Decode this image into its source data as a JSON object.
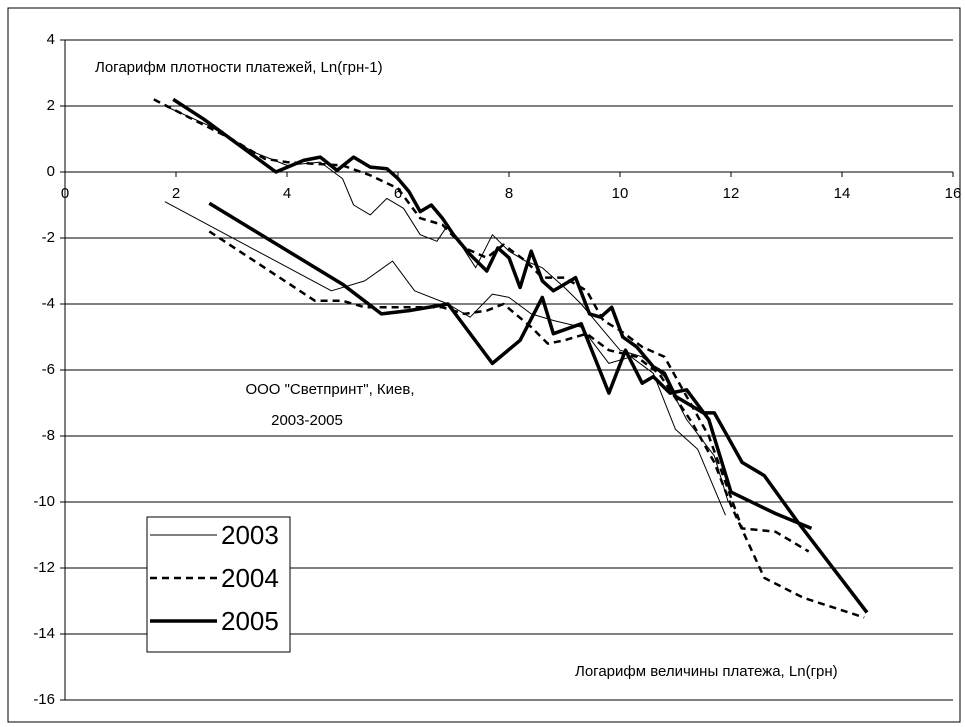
{
  "chart_data": {
    "type": "line",
    "y_label": "Логарифм плотности платежей, Ln(грн-1)",
    "x_label": "Логарифм величины платежа, Ln(грн)",
    "annotations": [
      "ООО \"Светпринт\", Киев,",
      "2003-2005"
    ],
    "xlim": [
      0,
      16
    ],
    "xticks": [
      0,
      2,
      4,
      6,
      8,
      10,
      12,
      14,
      16
    ],
    "ylim": [
      -16,
      4
    ],
    "yticks": [
      -16,
      -14,
      -12,
      -10,
      -8,
      -6,
      -4,
      -2,
      0,
      2,
      4
    ],
    "grid": true,
    "legend": "lower left",
    "series": [
      {
        "name": "2003",
        "color": "#000000",
        "line_width": 1,
        "dash": "solid",
        "x": [
          1.8,
          2.6,
          3.4,
          4.0,
          4.6,
          5.0,
          5.2,
          5.5,
          5.8,
          6.1,
          6.4,
          6.7,
          6.9,
          7.4,
          7.7,
          8.0,
          8.3,
          8.6,
          9.0,
          9.3,
          9.7,
          10.0,
          10.4,
          10.8,
          11.2,
          11.7,
          11.95,
          null,
          1.8,
          4.8,
          5.4,
          5.9,
          6.3,
          6.9,
          7.3,
          7.7,
          8.0,
          8.4,
          8.8,
          9.3,
          9.8,
          10.2,
          10.6,
          11.0,
          11.4,
          11.9
        ],
        "values": [
          2.0,
          1.4,
          0.6,
          0.2,
          0.3,
          -0.2,
          -1.0,
          -1.3,
          -0.8,
          -1.1,
          -1.9,
          -2.1,
          -1.6,
          -2.9,
          -1.9,
          -2.4,
          -2.7,
          -2.9,
          -3.5,
          -4.0,
          -4.8,
          -5.4,
          -5.6,
          -6.2,
          -7.5,
          -8.6,
          -10.0,
          null,
          -0.9,
          -3.6,
          -3.3,
          -2.7,
          -3.6,
          -4.0,
          -4.4,
          -3.7,
          -3.8,
          -4.3,
          -4.5,
          -4.7,
          -5.8,
          -5.6,
          -6.1,
          -7.8,
          -8.4,
          -10.4
        ]
      },
      {
        "name": "2004",
        "color": "#000000",
        "line_width": 2.5,
        "dash": "dashed",
        "x": [
          1.6,
          2.3,
          3.0,
          3.6,
          4.0,
          4.5,
          5.0,
          5.5,
          6.0,
          6.4,
          6.8,
          7.2,
          7.6,
          7.9,
          8.3,
          8.6,
          9.0,
          9.4,
          9.7,
          10.0,
          10.4,
          10.8,
          11.2,
          11.6,
          11.9,
          12.2,
          12.8,
          13.4,
          null,
          2.6,
          4.5,
          5.0,
          5.4,
          6.5,
          6.8,
          7.2,
          7.6,
          7.9,
          8.4,
          8.7,
          9.0,
          9.4,
          9.8,
          10.3,
          10.7,
          11.3,
          11.7,
          12.0,
          12.6,
          13.3,
          14.4
        ],
        "values": [
          2.2,
          1.6,
          1.0,
          0.4,
          0.3,
          0.25,
          0.2,
          -0.1,
          -0.5,
          -1.4,
          -1.6,
          -2.3,
          -2.6,
          -2.2,
          -2.7,
          -3.2,
          -3.2,
          -3.6,
          -4.5,
          -4.8,
          -5.3,
          -5.6,
          -6.8,
          -8.0,
          -9.4,
          -10.8,
          -10.9,
          -11.5,
          null,
          -1.8,
          -3.9,
          -3.9,
          -4.1,
          -4.1,
          -4.1,
          -4.3,
          -4.2,
          -4.0,
          -4.7,
          -5.2,
          -5.1,
          -4.9,
          -5.4,
          -5.6,
          -6.1,
          -7.6,
          -8.8,
          -10.1,
          -12.3,
          -12.9,
          -13.5
        ]
      },
      {
        "name": "2005",
        "color": "#000000",
        "line_width": 3.5,
        "dash": "solid",
        "x": [
          1.95,
          2.5,
          3.8,
          4.3,
          4.6,
          4.9,
          5.2,
          5.5,
          5.8,
          6.0,
          6.2,
          6.4,
          6.6,
          6.8,
          7.0,
          7.3,
          7.6,
          7.8,
          8.0,
          8.2,
          8.4,
          8.6,
          8.8,
          9.0,
          9.2,
          9.45,
          9.65,
          9.85,
          10.05,
          10.3,
          10.6,
          10.8,
          11.0,
          11.3,
          11.5,
          11.7,
          11.9,
          12.2,
          12.6,
          13.2,
          14.45,
          null,
          2.6,
          5.0,
          5.7,
          6.2,
          6.9,
          7.7,
          8.2,
          8.6,
          8.8,
          9.3,
          9.8,
          10.1,
          10.4,
          10.6,
          10.9,
          11.2,
          11.6,
          12.0,
          12.8,
          13.45
        ],
        "values": [
          2.2,
          1.6,
          0.0,
          0.35,
          0.45,
          0.05,
          0.45,
          0.15,
          0.1,
          -0.2,
          -0.6,
          -1.2,
          -1.0,
          -1.4,
          -1.9,
          -2.5,
          -3.0,
          -2.3,
          -2.6,
          -3.5,
          -2.4,
          -3.3,
          -3.6,
          -3.4,
          -3.2,
          -4.3,
          -4.4,
          -4.1,
          -5.0,
          -5.3,
          -5.9,
          -6.1,
          -6.8,
          -7.1,
          -7.3,
          -7.3,
          -7.9,
          -8.8,
          -9.2,
          -10.6,
          -13.35,
          null,
          -0.95,
          -3.4,
          -4.3,
          -4.2,
          -4.0,
          -5.8,
          -5.1,
          -3.8,
          -4.9,
          -4.6,
          -6.7,
          -5.4,
          -6.4,
          -6.2,
          -6.7,
          -6.6,
          -7.5,
          -9.7,
          -10.35,
          -10.8
        ]
      }
    ]
  }
}
